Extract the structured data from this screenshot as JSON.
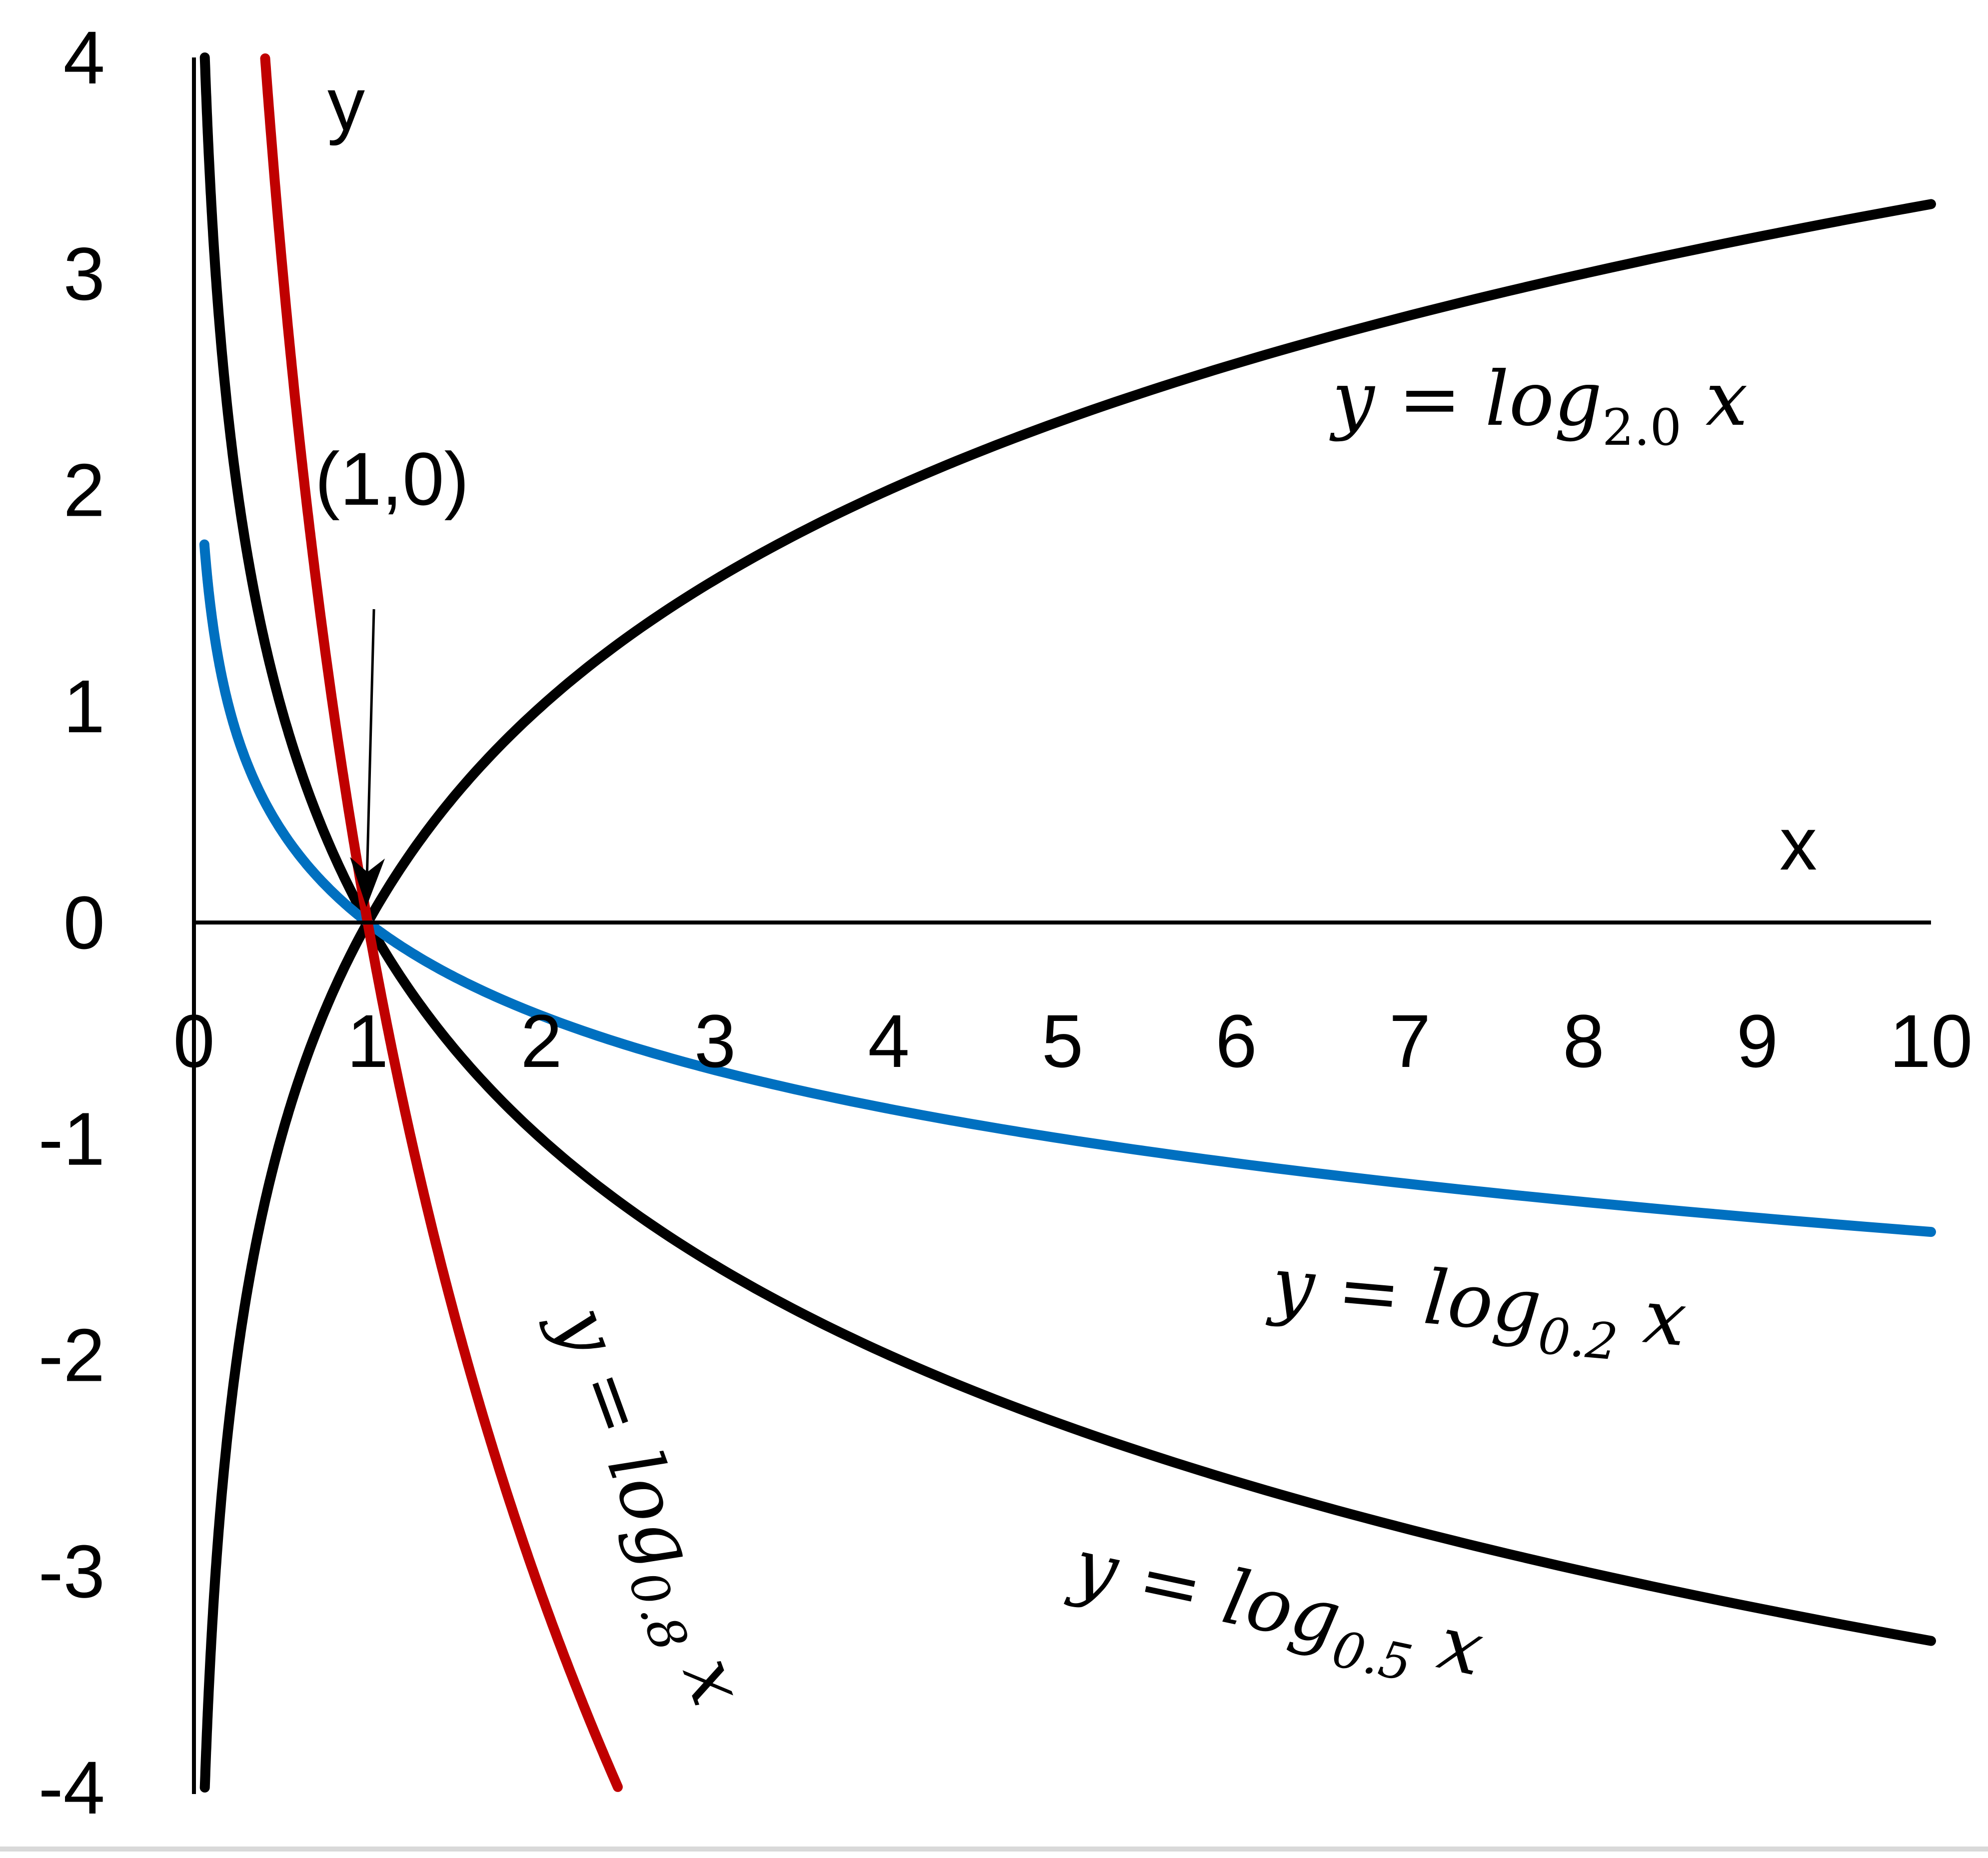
{
  "chart_data": {
    "type": "line",
    "xlabel": "x",
    "ylabel": "y",
    "xlim": [
      0,
      10
    ],
    "ylim": [
      -4,
      4
    ],
    "x_ticks": [
      "0",
      "1",
      "2",
      "3",
      "4",
      "5",
      "6",
      "7",
      "8",
      "9",
      "10"
    ],
    "y_ticks": [
      "4",
      "3",
      "2",
      "1",
      "0",
      "-1",
      "-2",
      "-3",
      "-4"
    ],
    "grid": false,
    "series": [
      {
        "name": "y = log2.0 x",
        "base": 2.0,
        "color": "#000000",
        "x_range": [
          0.0625,
          10
        ]
      },
      {
        "name": "y = log0.5 x",
        "base": 0.5,
        "color": "#000000",
        "x_range": [
          0.0625,
          10
        ]
      },
      {
        "name": "y = log0.2 x",
        "base": 0.2,
        "color": "#0070c0",
        "x_range": [
          0.06,
          10
        ]
      },
      {
        "name": "y = log0.8 x",
        "base": 0.8,
        "color": "#c00000",
        "x_range": [
          0.41,
          2.44
        ]
      }
    ],
    "labels": {
      "log2": {
        "pre": "y = log",
        "sub": "2.0",
        "post": " x"
      },
      "log02": {
        "pre": "y = log",
        "sub": "0.2",
        "post": " x"
      },
      "log05": {
        "pre": "y = log",
        "sub": "0.5",
        "post": " x"
      },
      "log08": {
        "pre": "y = log",
        "sub": "0.8",
        "post": " x"
      }
    },
    "annotation": {
      "text": "(1,0)",
      "point": [
        1,
        0
      ]
    }
  }
}
